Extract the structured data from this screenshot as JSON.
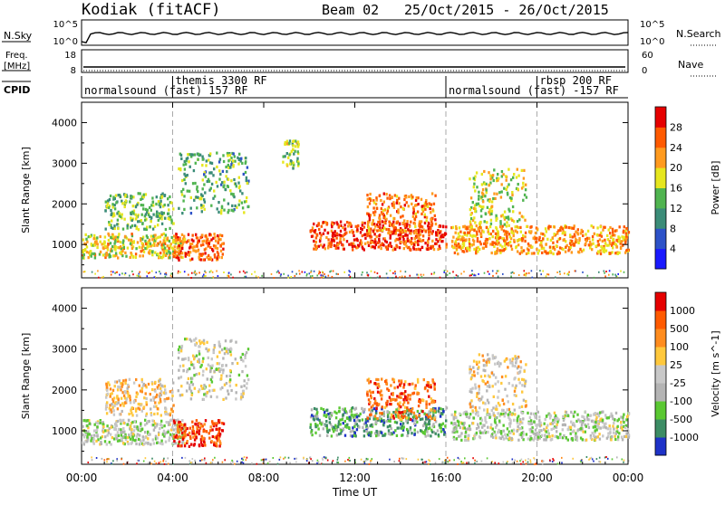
{
  "header": {
    "station": "Kodiak (fitACF)",
    "beam": "Beam 02",
    "dates": "25/Oct/2015 - 26/Oct/2015"
  },
  "top_strip": {
    "left_label": "N.Sky",
    "left_ticks": [
      "10^5",
      "10^0"
    ],
    "right_label": "N.Search",
    "right_ticks": [
      "10^5",
      "10^0"
    ]
  },
  "freq_strip": {
    "left_label_1": "Freq.",
    "left_label_2": "[MHz]",
    "left_ticks": [
      "18",
      "8"
    ],
    "right_label": "Nave",
    "right_ticks": [
      "60",
      "0"
    ]
  },
  "cpid": {
    "label": "CPID",
    "segments": [
      {
        "start_hour": 0,
        "end_hour": 16,
        "text": "normalsound (fast) 157 RF"
      },
      {
        "start_hour": 4,
        "end_hour": 16,
        "text": "themis 3300 RF"
      },
      {
        "start_hour": 16,
        "end_hour": 24,
        "text": "normalsound (fast) -157 RF"
      },
      {
        "start_hour": 20,
        "end_hour": 24,
        "text": "rbsp 200 RF"
      }
    ]
  },
  "chart_data": [
    {
      "type": "heatmap",
      "panel": "power",
      "ylabel": "Slant Range [km]",
      "y_ticks": [
        1000,
        2000,
        3000,
        4000
      ],
      "ylim": [
        180,
        4500
      ],
      "xlim_hours": [
        0,
        24
      ],
      "colorbar_label": "Power [dB]",
      "colorbar_ticks": [
        "4",
        "8",
        "12",
        "16",
        "20",
        "24",
        "28"
      ],
      "colorbar_colors": [
        "#1a1aff",
        "#2d52c8",
        "#3b8c78",
        "#50b450",
        "#e6e61e",
        "#ff9a1e",
        "#ff5a00",
        "#e60000"
      ],
      "scatter_regions": [
        {
          "start_hour": 0.0,
          "end_hour": 4.5,
          "range_km": [
            700,
            1300
          ],
          "level": 0.6
        },
        {
          "start_hour": 1.0,
          "end_hour": 4.0,
          "range_km": [
            1400,
            2300
          ],
          "level": 0.45
        },
        {
          "start_hour": 4.0,
          "end_hour": 6.2,
          "range_km": [
            650,
            1300
          ],
          "level": 0.8
        },
        {
          "start_hour": 4.2,
          "end_hour": 7.3,
          "range_km": [
            1800,
            3300
          ],
          "level": 0.4
        },
        {
          "start_hour": 8.8,
          "end_hour": 9.5,
          "range_km": [
            2900,
            3600
          ],
          "level": 0.5
        },
        {
          "start_hour": 10.0,
          "end_hour": 16.0,
          "range_km": [
            900,
            1600
          ],
          "level": 0.85
        },
        {
          "start_hour": 12.5,
          "end_hour": 15.5,
          "range_km": [
            1300,
            2300
          ],
          "level": 0.75
        },
        {
          "start_hour": 16.2,
          "end_hour": 24.0,
          "range_km": [
            800,
            1500
          ],
          "level": 0.7
        },
        {
          "start_hour": 17.0,
          "end_hour": 19.5,
          "range_km": [
            1500,
            2900
          ],
          "level": 0.55
        }
      ]
    },
    {
      "type": "heatmap",
      "panel": "velocity",
      "ylabel": "Slant Range [km]",
      "y_ticks": [
        1000,
        2000,
        3000,
        4000
      ],
      "ylim": [
        180,
        4500
      ],
      "xlim_hours": [
        0,
        24
      ],
      "xlabel": "Time UT",
      "x_ticks": [
        "00:00",
        "04:00",
        "08:00",
        "12:00",
        "16:00",
        "20:00",
        "00:00"
      ],
      "colorbar_label": "Velocity [m s^-1]",
      "colorbar_ticks": [
        "1000",
        "500",
        "100",
        "25",
        "-25",
        "-100",
        "-500",
        "-1000"
      ],
      "colorbar_colors": [
        "#1e32c8",
        "#3c8c64",
        "#5ac832",
        "#b4b4b4",
        "#c8c8c8",
        "#ffc83c",
        "#ff8c1e",
        "#ff5a00",
        "#e60000"
      ],
      "scatter_regions": [
        {
          "start_hour": 0.0,
          "end_hour": 4.5,
          "range_km": [
            700,
            1300
          ],
          "level": 0.42
        },
        {
          "start_hour": 1.0,
          "end_hour": 4.0,
          "range_km": [
            1400,
            2300
          ],
          "level": 0.6
        },
        {
          "start_hour": 4.0,
          "end_hour": 6.2,
          "range_km": [
            650,
            1300
          ],
          "level": 0.85
        },
        {
          "start_hour": 4.2,
          "end_hour": 7.3,
          "range_km": [
            1800,
            3300
          ],
          "level": 0.45
        },
        {
          "start_hour": 10.0,
          "end_hour": 16.0,
          "range_km": [
            900,
            1600
          ],
          "level": 0.25
        },
        {
          "start_hour": 12.5,
          "end_hour": 15.5,
          "range_km": [
            1300,
            2300
          ],
          "level": 0.8
        },
        {
          "start_hour": 16.2,
          "end_hour": 24.0,
          "range_km": [
            800,
            1500
          ],
          "level": 0.42
        },
        {
          "start_hour": 17.0,
          "end_hour": 19.5,
          "range_km": [
            1500,
            2900
          ],
          "level": 0.55
        }
      ]
    }
  ]
}
